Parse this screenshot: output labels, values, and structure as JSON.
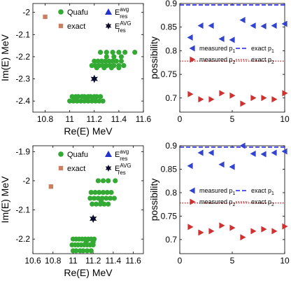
{
  "colors": {
    "quafu": "#33aa33",
    "exact_square": "#c98060",
    "star": "#0a0a2a",
    "avg_triangle": "#2233cc",
    "p1_marker": "#3344cc",
    "p2_marker": "#d03030",
    "p1_line": "#2222ee",
    "p2_line": "#cc2222"
  },
  "chart_data": [
    {
      "id": "top-left",
      "type": "scatter",
      "xlabel": "Re(E)  MeV",
      "ylabel": "Im(E)  MeV",
      "xlim": [
        10.7,
        11.6
      ],
      "ylim": [
        -2.45,
        -1.96
      ],
      "xticks": [
        10.8,
        11,
        11.2,
        11.4,
        11.6
      ],
      "xtick_labels": [
        "10.8",
        "11",
        "11.2",
        "11.4",
        "11.6"
      ],
      "yticks": [
        -2,
        -2.1,
        -2.2,
        -2.3,
        -2.4
      ],
      "ytick_labels": [
        "-2",
        "-2.1",
        "-2.2",
        "-2.3",
        "-2.4"
      ],
      "legend": {
        "quafu": "Quafu",
        "exact": "exact",
        "avg": "E",
        "avg_sup": "avg",
        "avg_sub": "res",
        "AVG": "E",
        "AVG_sup": "AVG",
        "AVG_sub": "res"
      },
      "series": [
        {
          "name": "Quafu",
          "points": [
            [
              11.02,
              -2.38
            ],
            [
              11.05,
              -2.38
            ],
            [
              11.07,
              -2.38
            ],
            [
              11.1,
              -2.38
            ],
            [
              11.12,
              -2.38
            ],
            [
              11.15,
              -2.38
            ],
            [
              11.17,
              -2.38
            ],
            [
              11.2,
              -2.38
            ],
            [
              11.22,
              -2.38
            ],
            [
              11.25,
              -2.38
            ],
            [
              11.0,
              -2.4
            ],
            [
              11.03,
              -2.4
            ],
            [
              11.06,
              -2.4
            ],
            [
              11.09,
              -2.4
            ],
            [
              11.12,
              -2.4
            ],
            [
              11.15,
              -2.4
            ],
            [
              11.18,
              -2.4
            ],
            [
              11.21,
              -2.4
            ],
            [
              11.24,
              -2.4
            ],
            [
              11.27,
              -2.4
            ],
            [
              11.05,
              -2.39
            ],
            [
              11.14,
              -2.39
            ],
            [
              11.2,
              -2.39
            ],
            [
              11.18,
              -2.24
            ],
            [
              11.21,
              -2.24
            ],
            [
              11.24,
              -2.24
            ],
            [
              11.27,
              -2.24
            ],
            [
              11.3,
              -2.24
            ],
            [
              11.33,
              -2.24
            ],
            [
              11.36,
              -2.24
            ],
            [
              11.4,
              -2.24
            ],
            [
              11.44,
              -2.24
            ],
            [
              11.2,
              -2.22
            ],
            [
              11.23,
              -2.22
            ],
            [
              11.26,
              -2.22
            ],
            [
              11.29,
              -2.22
            ],
            [
              11.32,
              -2.22
            ],
            [
              11.35,
              -2.22
            ],
            [
              11.38,
              -2.22
            ],
            [
              11.42,
              -2.22
            ],
            [
              11.22,
              -2.25
            ],
            [
              11.28,
              -2.25
            ],
            [
              11.34,
              -2.25
            ],
            [
              11.4,
              -2.25
            ],
            [
              11.3,
              -2.2
            ],
            [
              11.36,
              -2.2
            ],
            [
              11.42,
              -2.2
            ],
            [
              11.25,
              -2.18
            ],
            [
              11.3,
              -2.18
            ],
            [
              11.35,
              -2.18
            ],
            [
              11.4,
              -2.18
            ],
            [
              11.45,
              -2.18
            ],
            [
              11.53,
              -2.18
            ]
          ]
        },
        {
          "name": "exact",
          "points": [
            [
              10.8,
              -2.02
            ]
          ]
        },
        {
          "name": "Eavg",
          "points": [
            [
              11.25,
              -1.98
            ]
          ]
        },
        {
          "name": "EAVG",
          "points": [
            [
              11.2,
              -2.3
            ]
          ]
        }
      ]
    },
    {
      "id": "top-right",
      "type": "scatter",
      "xlabel": "",
      "ylabel": "possibility",
      "xlim": [
        0,
        10
      ],
      "ylim": [
        0.67,
        0.9
      ],
      "xticks": [
        0,
        5,
        10
      ],
      "xtick_labels": [
        "0",
        "5",
        "10"
      ],
      "yticks": [
        0.7,
        0.75,
        0.8,
        0.85,
        0.9
      ],
      "ytick_labels": [
        "0.7",
        "0.75",
        "0.8",
        "0.85",
        "0.9"
      ],
      "legend": {
        "m1": "measured p",
        "m1_sub": "1",
        "e1": "exact p",
        "e1_sub": "1",
        "m2": "measured p",
        "m2_sub": "2",
        "e2": "exact p",
        "e2_sub": "2"
      },
      "exact_p1": 0.897,
      "exact_p2": 0.778,
      "series": [
        {
          "name": "measured p1",
          "x": [
            1,
            2,
            3,
            4,
            5,
            6,
            7,
            8,
            9,
            10
          ],
          "values": [
            0.828,
            0.853,
            0.853,
            0.825,
            0.823,
            0.865,
            0.853,
            0.852,
            0.853,
            0.857
          ]
        },
        {
          "name": "measured p2",
          "x": [
            1,
            2,
            3,
            4,
            5,
            6,
            7,
            8,
            9,
            10
          ],
          "values": [
            0.708,
            0.697,
            0.697,
            0.71,
            0.705,
            0.688,
            0.7,
            0.7,
            0.697,
            0.71
          ]
        }
      ]
    },
    {
      "id": "bottom-left",
      "type": "scatter",
      "xlabel": "Re(E)  MeV",
      "ylabel": "Im(E)  MeV",
      "xlim": [
        10.6,
        11.7
      ],
      "ylim": [
        -2.25,
        -1.88
      ],
      "xticks": [
        10.6,
        10.8,
        11,
        11.2,
        11.4,
        11.6
      ],
      "xtick_labels": [
        "10.6",
        "10.8",
        "11",
        "11.2",
        "11.4",
        "11.6"
      ],
      "yticks": [
        -1.9,
        -2,
        -2.1,
        -2.2
      ],
      "ytick_labels": [
        "-1.9",
        "-2",
        "-2.1",
        "-2.2"
      ],
      "legend": {
        "quafu": "Quafu",
        "exact": "exact",
        "avg": "E",
        "avg_sup": "avg",
        "avg_sub": "res",
        "AVG": "E",
        "AVG_sup": "AVG",
        "AVG_sub": "res"
      },
      "series": [
        {
          "name": "Quafu",
          "points": [
            [
              11.0,
              -2.2
            ],
            [
              11.03,
              -2.2
            ],
            [
              11.06,
              -2.2
            ],
            [
              11.09,
              -2.2
            ],
            [
              11.12,
              -2.2
            ],
            [
              11.15,
              -2.2
            ],
            [
              11.18,
              -2.2
            ],
            [
              11.21,
              -2.2
            ],
            [
              10.99,
              -2.22
            ],
            [
              11.02,
              -2.22
            ],
            [
              11.05,
              -2.22
            ],
            [
              11.08,
              -2.22
            ],
            [
              11.11,
              -2.22
            ],
            [
              11.14,
              -2.22
            ],
            [
              11.17,
              -2.22
            ],
            [
              11.2,
              -2.22
            ],
            [
              11.0,
              -2.24
            ],
            [
              11.03,
              -2.24
            ],
            [
              11.07,
              -2.24
            ],
            [
              11.1,
              -2.24
            ],
            [
              11.14,
              -2.24
            ],
            [
              11.18,
              -2.24
            ],
            [
              11.13,
              -2.21
            ],
            [
              11.2,
              -2.21
            ],
            [
              11.18,
              -2.04
            ],
            [
              11.22,
              -2.04
            ],
            [
              11.26,
              -2.04
            ],
            [
              11.3,
              -2.04
            ],
            [
              11.34,
              -2.04
            ],
            [
              11.38,
              -2.04
            ],
            [
              11.17,
              -2.06
            ],
            [
              11.21,
              -2.06
            ],
            [
              11.25,
              -2.06
            ],
            [
              11.29,
              -2.06
            ],
            [
              11.33,
              -2.06
            ],
            [
              11.37,
              -2.06
            ],
            [
              11.41,
              -2.06
            ],
            [
              11.19,
              -2.08
            ],
            [
              11.23,
              -2.08
            ],
            [
              11.27,
              -2.08
            ],
            [
              11.31,
              -2.08
            ],
            [
              11.35,
              -2.08
            ],
            [
              11.28,
              -2.07
            ],
            [
              11.25,
              -2.0
            ],
            [
              11.3,
              -2.0
            ],
            [
              11.35,
              -2.0
            ],
            [
              11.42,
              -2.0
            ]
          ]
        },
        {
          "name": "exact",
          "points": [
            [
              10.78,
              -2.02
            ]
          ]
        },
        {
          "name": "Eavg",
          "points": [
            [
              11.17,
              -1.89
            ]
          ]
        },
        {
          "name": "EAVG",
          "points": [
            [
              11.2,
              -2.13
            ]
          ]
        }
      ]
    },
    {
      "id": "bottom-right",
      "type": "scatter",
      "xlabel": "",
      "ylabel": "possibility",
      "xlim": [
        0,
        10
      ],
      "ylim": [
        0.67,
        0.9
      ],
      "xticks": [
        0,
        5,
        10
      ],
      "xtick_labels": [
        "0",
        "5",
        "10"
      ],
      "yticks": [
        0.7,
        0.75,
        0.8,
        0.85,
        0.9
      ],
      "ytick_labels": [
        "0.7",
        "0.75",
        "0.8",
        "0.85",
        "0.9"
      ],
      "legend": {
        "m1": "measured p",
        "m1_sub": "1",
        "e1": "exact p",
        "e1_sub": "1",
        "m2": "measured p",
        "m2_sub": "2",
        "e2": "exact p",
        "e2_sub": "2"
      },
      "exact_p1": 0.897,
      "exact_p2": 0.778,
      "series": [
        {
          "name": "measured p1",
          "x": [
            1,
            2,
            3,
            4,
            5,
            6,
            7,
            8,
            9,
            10
          ],
          "values": [
            0.857,
            0.885,
            0.885,
            0.86,
            0.855,
            0.9,
            0.883,
            0.882,
            0.885,
            0.888
          ]
        },
        {
          "name": "measured p2",
          "x": [
            1,
            2,
            3,
            4,
            5,
            6,
            7,
            8,
            9,
            10
          ],
          "values": [
            0.727,
            0.715,
            0.718,
            0.73,
            0.725,
            0.705,
            0.718,
            0.722,
            0.718,
            0.728
          ]
        }
      ]
    }
  ]
}
